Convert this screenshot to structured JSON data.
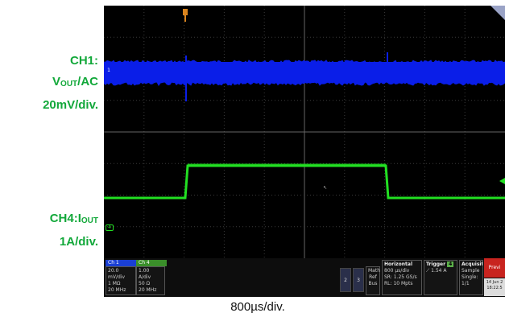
{
  "labels": {
    "ch1_line1": "CH1:",
    "ch1_vout_v": "V",
    "ch1_vout_sub": "OUT",
    "ch1_vout_rest": "/AC",
    "ch1_scale": "20mV/div.",
    "ch4_prefix": "CH4:I",
    "ch4_sub": "OUT",
    "ch4_scale": "1A/div.",
    "time_scale": "800µs/div."
  },
  "colors": {
    "ch1": "#0a1ee8",
    "ch4": "#22e022",
    "label_green": "#12a83a",
    "grid": "#4a4a4a"
  },
  "markers": {
    "ch1": "1",
    "ch4": "4"
  },
  "status": {
    "ch1_tab": "Ch 1",
    "ch4_tab": "Ch 4",
    "ch1_lines": [
      "20.0 mV/div",
      "1 MΩ",
      "20 MHz"
    ],
    "ch4_lines": [
      "1.00 A/div",
      "50 Ω",
      "20 MHz"
    ],
    "btn2": "2",
    "btn3": "3",
    "math_ref_bus": [
      "Math",
      "Ref",
      "Bus"
    ],
    "horizontal": [
      "Horizontal",
      "800 µs/div",
      "SR: 1.25 GS/s",
      "RL: 10 Mpts"
    ],
    "trigger": [
      "Trigger",
      "4",
      "1.54 A"
    ],
    "acquisition": [
      "Acquisition",
      "Sample",
      "Single: 1/1"
    ],
    "preview": "Previ",
    "date": [
      "14 Jun 2",
      "18:22:5"
    ]
  }
}
